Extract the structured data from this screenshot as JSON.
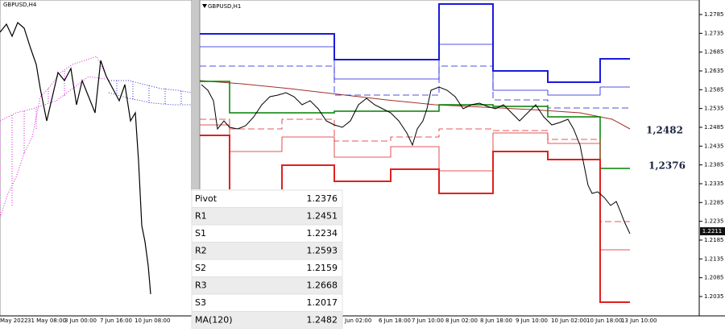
{
  "left_chart": {
    "title": "GBPUSD,H4",
    "time_labels": [
      "May 2022",
      "31 May 08:00",
      "3 Jun 00:00",
      "7 Jun 16:00",
      "10 Jun 08:00"
    ]
  },
  "right_chart": {
    "title": "GBPUSD,H1",
    "price_labels": [
      "1.2785",
      "1.2735",
      "1.2685",
      "1.2635",
      "1.2585",
      "1.2535",
      "1.2485",
      "1.2435",
      "1.2385",
      "1.2335",
      "1.2285",
      "1.2235",
      "1.2185",
      "1.2135",
      "1.2085",
      "1.2035"
    ],
    "current_price": "1.2211",
    "annotations": [
      "1,2482",
      "1,2376"
    ],
    "time_labels": [
      "Jun 02:00",
      "6 Jun 18:00",
      "7 Jun 10:00",
      "8 Jun 02:00",
      "8 Jun 18:00",
      "9 Jun 10:00",
      "10 Jun 02:00",
      "10 Jun 18:00",
      "13 Jun 10:00"
    ]
  },
  "levels_table": {
    "rows": [
      [
        "Pivot",
        "1.2376"
      ],
      [
        "R1",
        "1.2451"
      ],
      [
        "S1",
        "1.2234"
      ],
      [
        "R2",
        "1.2593"
      ],
      [
        "S2",
        "1.2159"
      ],
      [
        "R3",
        "1.2668"
      ],
      [
        "S3",
        "1.2017"
      ],
      [
        "MA(120)",
        "1.2482"
      ]
    ]
  }
}
